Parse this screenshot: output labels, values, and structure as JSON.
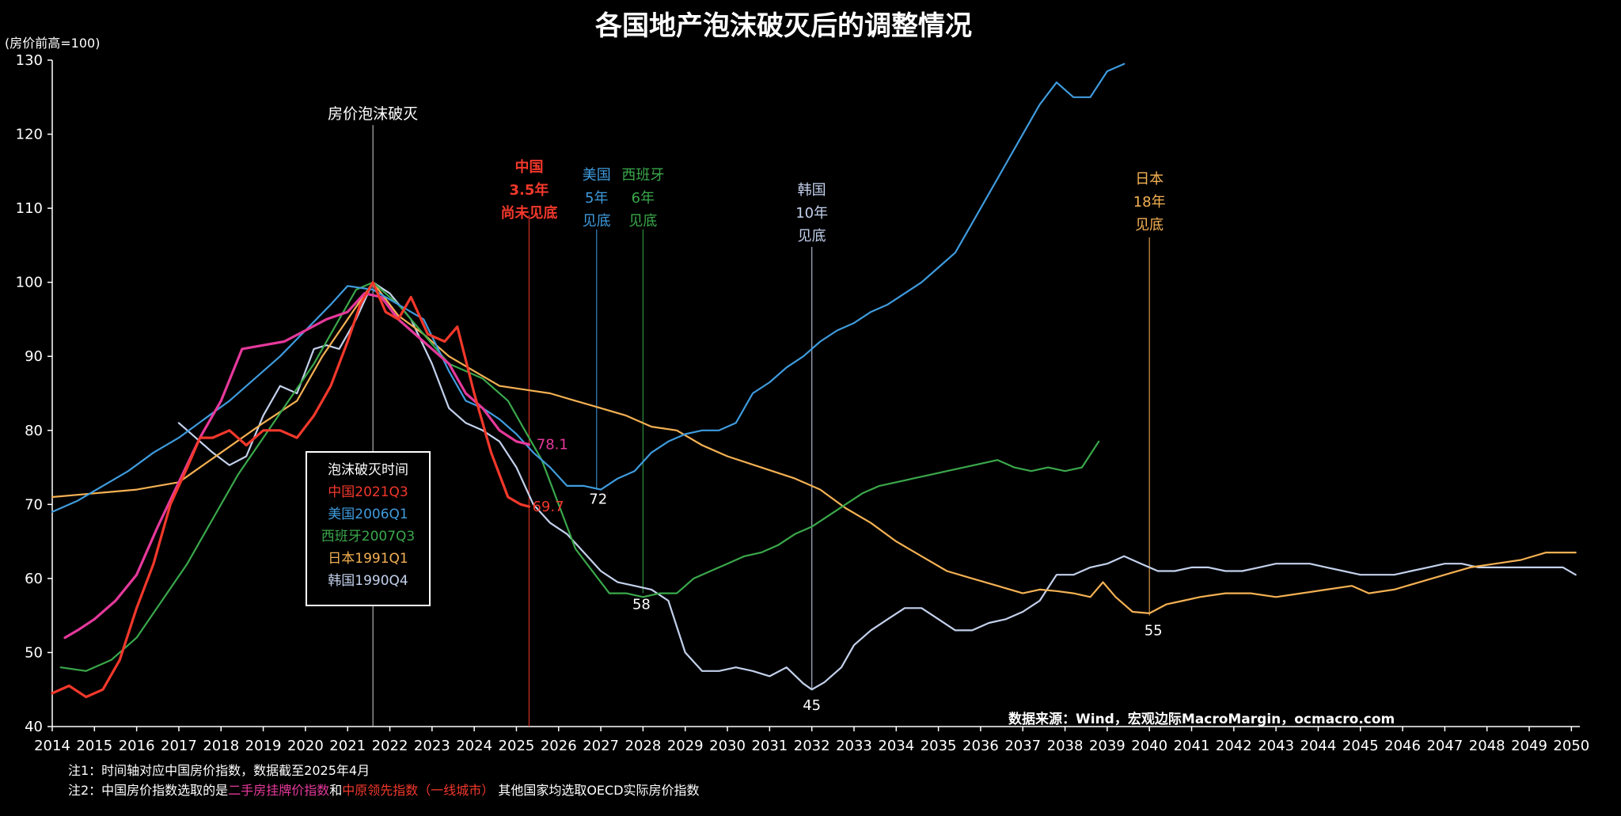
{
  "chart_data": {
    "type": "line",
    "title": "各国地产泡沫破灭后的调整情况",
    "ylabel": "(房价前高=100)",
    "ylim": [
      40,
      130
    ],
    "yticks": [
      40,
      50,
      60,
      70,
      80,
      90,
      100,
      110,
      120,
      130
    ],
    "xlim": [
      2014,
      2050.2
    ],
    "xticks": [
      "2014",
      "2015",
      "2016",
      "2017",
      "2018",
      "2019",
      "2020",
      "2021",
      "2022",
      "2023",
      "2024",
      "2025",
      "2026",
      "2027",
      "2028",
      "2029",
      "2030",
      "2031",
      "2032",
      "2033",
      "2034",
      "2035",
      "2036",
      "2037",
      "2038",
      "2039",
      "2040",
      "2041",
      "2042",
      "2043",
      "2044",
      "2045",
      "2046",
      "2047",
      "2048",
      "2049",
      "2050"
    ],
    "grid": false,
    "colors": {
      "red": "#f2382b",
      "pink": "#e5399b",
      "blue": "#3f9bdd",
      "green": "#3aa84b",
      "orange": "#f4b153",
      "korea": "#c3d1ec",
      "axis": "#ffffff"
    },
    "series": [
      {
        "key": "korea",
        "color": "#c3d1ec",
        "x": [
          2017.0,
          2017.4,
          2017.8,
          2018.2,
          2018.6,
          2019.0,
          2019.4,
          2019.8,
          2020.2,
          2020.5,
          2020.8,
          2021.2,
          2021.6,
          2022.0,
          2022.5,
          2023.0,
          2023.4,
          2023.8,
          2024.2,
          2024.6,
          2025.0,
          2025.4,
          2025.8,
          2026.2,
          2026.6,
          2027.0,
          2027.4,
          2027.8,
          2028.2,
          2028.6,
          2029.0,
          2029.4,
          2029.8,
          2030.2,
          2030.6,
          2031.0,
          2031.4,
          2031.8,
          2032.0,
          2032.3,
          2032.7,
          2033.0,
          2033.4,
          2033.8,
          2034.2,
          2034.6,
          2035.0,
          2035.4,
          2035.8,
          2036.2,
          2036.6,
          2037.0,
          2037.4,
          2037.8,
          2038.2,
          2038.6,
          2039.0,
          2039.4,
          2039.8,
          2040.2,
          2040.6,
          2041.0,
          2041.4,
          2041.8,
          2042.2,
          2042.6,
          2043.0,
          2043.4,
          2043.8,
          2044.2,
          2044.6,
          2045.0,
          2045.4,
          2045.8,
          2046.2,
          2046.6,
          2047.0,
          2047.4,
          2047.8,
          2048.2,
          2048.6,
          2049.0,
          2049.4,
          2049.8,
          2050.1
        ],
        "values": [
          81,
          79,
          77,
          75.3,
          76.5,
          82,
          86,
          85,
          91,
          91.5,
          91,
          95,
          100,
          98.5,
          95,
          89,
          83,
          81,
          80,
          78.5,
          75,
          70,
          67.5,
          66,
          63.5,
          61,
          59.5,
          59,
          58.5,
          57,
          50,
          47.5,
          47.5,
          48,
          47.5,
          46.8,
          48,
          45.8,
          45,
          46,
          48,
          51,
          53,
          54.5,
          56,
          56,
          54.5,
          53,
          53,
          54,
          54.5,
          55.5,
          57,
          60.5,
          60.5,
          61.5,
          62,
          63,
          62,
          61,
          61,
          61.5,
          61.5,
          61,
          61,
          61.5,
          62,
          62,
          62,
          61.5,
          61,
          60.5,
          60.5,
          60.5,
          61,
          61.5,
          62,
          62,
          61.5,
          61.5,
          61.5,
          61.5,
          61.5,
          61.5,
          60.5
        ]
      },
      {
        "key": "japan",
        "color": "#f4b153",
        "x": [
          2014.0,
          2015.0,
          2016.0,
          2017.0,
          2018.0,
          2019.0,
          2019.8,
          2020.4,
          2021.0,
          2021.6,
          2022.2,
          2022.8,
          2023.4,
          2024.0,
          2024.6,
          2025.2,
          2025.8,
          2026.4,
          2027.0,
          2027.6,
          2028.2,
          2028.8,
          2029.4,
          2030.0,
          2030.8,
          2031.6,
          2032.2,
          2032.8,
          2033.4,
          2034.0,
          2034.6,
          2035.2,
          2035.8,
          2036.4,
          2037.0,
          2037.4,
          2037.8,
          2038.2,
          2038.6,
          2038.9,
          2039.2,
          2039.6,
          2040.0,
          2040.4,
          2040.8,
          2041.2,
          2041.8,
          2042.4,
          2043.0,
          2043.6,
          2044.2,
          2044.8,
          2045.2,
          2045.8,
          2046.4,
          2047.0,
          2047.6,
          2048.2,
          2048.8,
          2049.4,
          2050.1
        ],
        "values": [
          71,
          71.5,
          72,
          73,
          77,
          81,
          84,
          90,
          95,
          100,
          95.5,
          93,
          90,
          88,
          86,
          85.5,
          85,
          84,
          83,
          82,
          80.5,
          80,
          78,
          76.5,
          75,
          73.5,
          72,
          69.5,
          67.5,
          65,
          63,
          61,
          60,
          59,
          58,
          58.5,
          58.3,
          58,
          57.5,
          59.5,
          57.5,
          55.5,
          55.3,
          56.5,
          57,
          57.5,
          58,
          58,
          57.5,
          58,
          58.5,
          59,
          58,
          58.5,
          59.5,
          60.5,
          61.5,
          62,
          62.5,
          63.5,
          63.5
        ]
      },
      {
        "key": "spain",
        "color": "#3aa84b",
        "x": [
          2014.2,
          2014.8,
          2015.4,
          2016.0,
          2016.6,
          2017.2,
          2017.8,
          2018.4,
          2019.0,
          2019.6,
          2020.2,
          2020.8,
          2021.2,
          2021.6,
          2022.2,
          2022.8,
          2023.4,
          2023.8,
          2024.2,
          2024.8,
          2025.2,
          2025.6,
          2026.0,
          2026.4,
          2026.8,
          2027.2,
          2027.6,
          2028.0,
          2028.4,
          2028.8,
          2029.2,
          2029.6,
          2030.0,
          2030.4,
          2030.8,
          2031.2,
          2031.6,
          2032.0,
          2032.4,
          2032.8,
          2033.2,
          2033.6,
          2034.0,
          2034.4,
          2034.8,
          2035.2,
          2035.6,
          2036.0,
          2036.4,
          2036.8,
          2037.2,
          2037.6,
          2038.0,
          2038.4,
          2038.8
        ],
        "values": [
          48,
          47.5,
          49,
          52,
          57,
          62,
          68,
          74,
          79,
          84,
          89,
          95,
          99,
          100,
          97,
          93,
          89,
          88,
          87,
          84,
          80,
          76,
          70,
          64,
          61,
          58,
          58,
          57.5,
          58,
          58,
          60,
          61,
          62,
          63,
          63.5,
          64.5,
          66,
          67,
          68.5,
          70,
          71.5,
          72.5,
          73,
          73.5,
          74,
          74.5,
          75,
          75.5,
          76,
          75,
          74.5,
          75,
          74.5,
          75,
          78.5
        ]
      },
      {
        "key": "usa",
        "color": "#3f9bdd",
        "x": [
          2014.0,
          2014.6,
          2015.2,
          2015.8,
          2016.4,
          2017.0,
          2017.6,
          2018.2,
          2018.8,
          2019.4,
          2020.0,
          2020.6,
          2021.0,
          2021.6,
          2022.2,
          2022.8,
          2023.4,
          2023.8,
          2024.2,
          2024.6,
          2025.0,
          2025.4,
          2025.8,
          2026.2,
          2026.6,
          2027.0,
          2027.4,
          2027.8,
          2028.2,
          2028.6,
          2029.0,
          2029.4,
          2029.8,
          2030.2,
          2030.6,
          2031.0,
          2031.4,
          2031.8,
          2032.2,
          2032.6,
          2033.0,
          2033.4,
          2033.8,
          2034.2,
          2034.6,
          2035.0,
          2035.4,
          2035.8,
          2036.2,
          2036.6,
          2037.0,
          2037.4,
          2037.8,
          2038.2,
          2038.6,
          2039.0,
          2039.4
        ],
        "values": [
          69,
          70.5,
          72.5,
          74.5,
          77,
          79,
          81.5,
          84,
          87,
          90,
          93.5,
          97,
          99.5,
          99,
          97,
          95,
          88,
          84,
          83,
          81.5,
          79.5,
          77,
          75,
          72.5,
          72.5,
          72,
          73.5,
          74.5,
          77,
          78.5,
          79.5,
          80,
          80,
          81,
          85,
          86.5,
          88.5,
          90,
          92,
          93.5,
          94.5,
          96,
          97,
          98.5,
          100,
          102,
          104,
          108,
          112,
          116,
          120,
          124,
          127,
          125,
          125,
          128.5,
          129.5
        ]
      },
      {
        "key": "china_listing",
        "color": "#e5399b",
        "x": [
          2014.3,
          2014.6,
          2015.0,
          2015.5,
          2016.0,
          2016.5,
          2017.0,
          2017.5,
          2018.0,
          2018.5,
          2019.0,
          2019.5,
          2020.0,
          2020.5,
          2021.0,
          2021.4,
          2021.8,
          2022.2,
          2022.6,
          2023.0,
          2023.4,
          2023.8,
          2024.2,
          2024.6,
          2025.0,
          2025.3
        ],
        "values": [
          52,
          53,
          54.5,
          57,
          60.5,
          67,
          73,
          79,
          84,
          91,
          91.5,
          92,
          93.5,
          95,
          96,
          98.5,
          98,
          95,
          93,
          91,
          89,
          85,
          83,
          80,
          78.5,
          78.1
        ]
      },
      {
        "key": "china_centaline",
        "color": "#f2382b",
        "x": [
          2014.0,
          2014.4,
          2014.8,
          2015.2,
          2015.6,
          2016.0,
          2016.4,
          2016.8,
          2017.2,
          2017.5,
          2017.8,
          2018.2,
          2018.6,
          2019.0,
          2019.4,
          2019.8,
          2020.2,
          2020.6,
          2021.0,
          2021.3,
          2021.6,
          2021.9,
          2022.2,
          2022.5,
          2022.9,
          2023.3,
          2023.6,
          2024.0,
          2024.4,
          2024.8,
          2025.1,
          2025.3
        ],
        "values": [
          44.5,
          45.5,
          44,
          45,
          49,
          56,
          62,
          70,
          75,
          79,
          79,
          80,
          78,
          80,
          80,
          79,
          82,
          86,
          92,
          97,
          100,
          96,
          95,
          98,
          93,
          92,
          94,
          85,
          77,
          71,
          70,
          69.7
        ]
      }
    ],
    "annotations": {
      "bubble": "房价泡沫破灭",
      "china_lines": [
        "中国",
        "3.5年",
        "尚未见底"
      ],
      "usa_lines": [
        "美国",
        "5年",
        "见底"
      ],
      "spain_lines": [
        "西班牙",
        "6年",
        "见底"
      ],
      "korea_lines": [
        "韩国",
        "10年",
        "见底"
      ],
      "japan_lines": [
        "日本",
        "18年",
        "见底"
      ],
      "china_listing_end": "78.1",
      "china_centaline_end": "69.7",
      "usa_bottom": "72",
      "spain_bottom": "58",
      "korea_bottom": "45",
      "japan_bottom": "55",
      "source": "数据来源：Wind，宏观边际MacroMargin，ocmacro.com"
    }
  },
  "legend": {
    "title": "泡沫破灭时间",
    "china": "中国2021Q3",
    "usa": "美国2006Q1",
    "spain": "西班牙2007Q3",
    "japan": "日本1991Q1",
    "korea": "韩国1990Q4"
  },
  "notes": {
    "note1": "注1：时间轴对应中国房价指数，数据截至2025年4月",
    "note2_prefix": "注2：中国房价指数选取的是",
    "note2_pink": "二手房挂牌价指数",
    "note2_and": "和",
    "note2_red": "中原领先指数（一线城市）",
    "note2_suffix": " 其他国家均选取OECD实际房价指数"
  }
}
